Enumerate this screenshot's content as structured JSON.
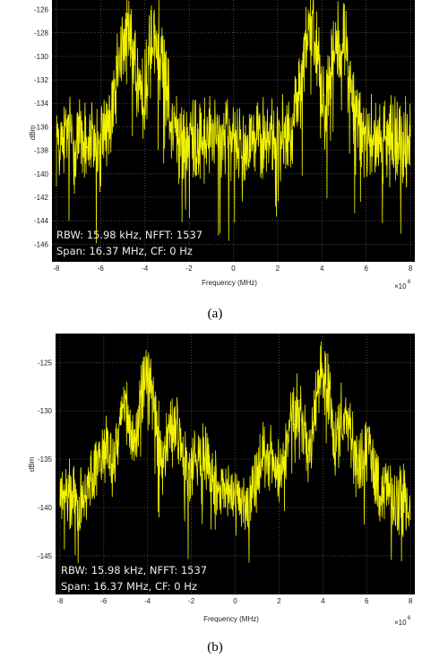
{
  "colors": {
    "plot_bg": "#000000",
    "trace": "#f2f200",
    "grid": "#5a5a5a"
  },
  "chart_data": [
    {
      "type": "line",
      "caption": "(a)",
      "xlabel": "Frequency (MHz)",
      "x_exponent_base": "×10",
      "x_exponent_power": "6",
      "ylabel": "dBm",
      "xlim": [
        -8.2,
        8.2
      ],
      "ylim": [
        -147.5,
        -125.2
      ],
      "xticks": [
        -8,
        -6,
        -4,
        -2,
        0,
        2,
        4,
        6,
        8
      ],
      "yticks": [
        -146,
        -144,
        -142,
        -140,
        -138,
        -136,
        -134,
        -132,
        -130,
        -128,
        -126
      ],
      "grid": true,
      "annotations": [
        "RBW: 15.98 kHz, NFFT: 1537",
        "Span: 16.37 MHz, CF: 0 Hz"
      ],
      "noise_floor": -136.5,
      "peaks": [
        {
          "x": -4.8,
          "y": -127.2
        },
        {
          "x": -3.5,
          "y": -127.8
        },
        {
          "x": 3.5,
          "y": -127.2
        },
        {
          "x": 4.8,
          "y": -127.4
        }
      ],
      "min_value": -146.0
    },
    {
      "type": "line",
      "caption": "(b)",
      "xlabel": "Frequency (MHz)",
      "x_exponent_base": "×10",
      "x_exponent_power": "6",
      "ylabel": "dBm",
      "xlim": [
        -8.2,
        8.2
      ],
      "ylim": [
        -149,
        -122
      ],
      "xticks": [
        -8,
        -6,
        -4,
        -2,
        0,
        2,
        4,
        6,
        8
      ],
      "yticks": [
        -145,
        -140,
        -135,
        -130,
        -125
      ],
      "grid": true,
      "annotations": [
        "RBW: 15.98 kHz, NFFT: 1537",
        "Span: 16.37 MHz, CF: 0 Hz"
      ],
      "noise_floor": -138.5,
      "peaks": [
        {
          "x": -6.0,
          "y": -133.5
        },
        {
          "x": -5.0,
          "y": -129.5
        },
        {
          "x": -4.0,
          "y": -125.5
        },
        {
          "x": -2.8,
          "y": -130.5
        },
        {
          "x": -1.5,
          "y": -133.5
        },
        {
          "x": 1.5,
          "y": -133.5
        },
        {
          "x": 2.8,
          "y": -129.5
        },
        {
          "x": 4.0,
          "y": -125.5
        },
        {
          "x": 5.0,
          "y": -130.0
        },
        {
          "x": 6.0,
          "y": -134.0
        }
      ],
      "min_value": -146.0
    }
  ]
}
